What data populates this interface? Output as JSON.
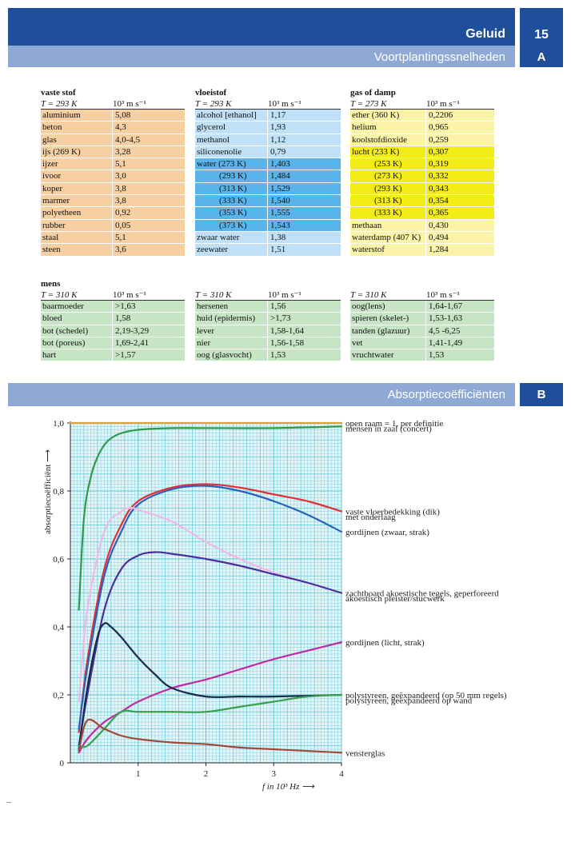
{
  "header": {
    "title": "Geluid",
    "chapter": "15",
    "subtitle": "Voortplantingssnelheden",
    "section": "A"
  },
  "tables": {
    "vaste_stof": {
      "title": "vaste stof",
      "temp": "T = 293 K",
      "unit": "10³ m s⁻¹",
      "rows": [
        [
          "aluminium",
          "5,08"
        ],
        [
          "beton",
          "4,3"
        ],
        [
          "glas",
          "4,0-4,5"
        ],
        [
          "ijs (269 K)",
          "3,28"
        ],
        [
          "ijzer",
          "5,1"
        ],
        [
          "ivoor",
          "3,0"
        ],
        [
          "koper",
          "3,8"
        ],
        [
          "marmer",
          "3,8"
        ],
        [
          "polyetheen",
          "0,92"
        ],
        [
          "rubber",
          "0,05"
        ],
        [
          "staal",
          "5,1"
        ],
        [
          "steen",
          "3,6"
        ]
      ]
    },
    "vloeistof": {
      "title": "vloeistof",
      "temp": "T = 293 K",
      "unit": "10³ m s⁻¹",
      "rows": [
        [
          "alcohol [ethanol]",
          "1,17"
        ],
        [
          "glycerol",
          "1,93"
        ],
        [
          "methanol",
          "1,12"
        ],
        [
          "siliconenolie",
          "0,79"
        ],
        [
          "water (273 K)",
          "1,403"
        ],
        [
          "(293 K)",
          "1,484"
        ],
        [
          "(313 K)",
          "1,529"
        ],
        [
          "(333 K)",
          "1,540"
        ],
        [
          "(353 K)",
          "1,555"
        ],
        [
          "(373 K)",
          "1,543"
        ],
        [
          "zwaar water",
          "1,38"
        ],
        [
          "zeewater",
          "1,51"
        ]
      ]
    },
    "gas": {
      "title": "gas of damp",
      "temp": "T = 273 K",
      "unit": "10³ m s⁻¹",
      "rows": [
        [
          "ether (360 K)",
          "0,2206"
        ],
        [
          "helium",
          "0,965"
        ],
        [
          "koolstofdioxide",
          "0,259"
        ],
        [
          "lucht   (233 K)",
          "0,307"
        ],
        [
          "(253 K)",
          "0,319"
        ],
        [
          "(273 K)",
          "0,332"
        ],
        [
          "(293 K)",
          "0,343"
        ],
        [
          "(313 K)",
          "0,354"
        ],
        [
          "(333 K)",
          "0,365"
        ],
        [
          "methaan",
          "0,430"
        ],
        [
          "waterdamp (407 K)",
          "0,494"
        ],
        [
          "waterstof",
          "1,284"
        ]
      ]
    },
    "mens": {
      "title": "mens",
      "temp": "T = 310 K",
      "unit": "10³ m s⁻¹",
      "rows": [
        [
          "baarmoeder",
          ">1,63"
        ],
        [
          "bloed",
          "1,58"
        ],
        [
          "bot (schedel)",
          "2,19-3,29"
        ],
        [
          "bot (poreus)",
          "1,69-2,41"
        ],
        [
          "hart",
          ">1,57"
        ]
      ]
    },
    "mens2": {
      "temp": "T = 310 K",
      "unit": "10³ m s⁻¹",
      "rows": [
        [
          "hersenen",
          "1,56"
        ],
        [
          "huid (epidermis)",
          ">1,73"
        ],
        [
          "lever",
          "1,58-1,64"
        ],
        [
          "nier",
          "1,56-1,58"
        ],
        [
          "oog (glasvocht)",
          "1,53"
        ]
      ]
    },
    "mens3": {
      "temp": "T = 310 K",
      "unit": "10³ m s⁻¹",
      "rows": [
        [
          "oog(lens)",
          "1,64-1,67"
        ],
        [
          "spieren (skelet-)",
          "1,53-1,63"
        ],
        [
          "tanden (glazuur)",
          "4,5 -6,25"
        ],
        [
          "vet",
          "1,41-1,49"
        ],
        [
          "vruchtwater",
          "1,53"
        ]
      ]
    }
  },
  "colors": {
    "solid": "#f6cfa3",
    "liquid_light": "#bfe0f6",
    "liquid_dark": "#58b4ea",
    "gas": "#fbf3a8",
    "gas_highlight": "#f4ec16",
    "human": "#c7e4c4",
    "band_dark": "#1f4f9a",
    "band_light": "#8fa9d6",
    "grid": "#62c3d4",
    "grid_bg": "#e2f5f8"
  },
  "section_b": {
    "title": "Absorptiecoëfficiënten",
    "letter": "B"
  },
  "chart_data": {
    "type": "line",
    "xlabel": "f  in 10³ Hz",
    "ylabel": "absorptiecoëfficiënt",
    "xlim": [
      0,
      4
    ],
    "ylim": [
      0,
      1.0
    ],
    "x_ticks": [
      "1",
      "2",
      "3",
      "4"
    ],
    "y_ticks": [
      "0",
      "0,2",
      "0,4",
      "0,6",
      "0,8",
      "1,0"
    ],
    "grid": true,
    "series": [
      {
        "name": "open raam = 1, per definitie",
        "color": "#d9a040",
        "x": [
          0,
          4
        ],
        "y": [
          1.0,
          1.0
        ]
      },
      {
        "name": "mensen in zaal (concert)",
        "color": "#2f9a4a",
        "x": [
          0.125,
          0.2,
          0.3,
          0.4,
          0.5,
          0.6,
          0.75,
          1.0,
          1.5,
          2.0,
          3.0,
          4.0
        ],
        "y": [
          0.45,
          0.72,
          0.84,
          0.9,
          0.935,
          0.955,
          0.97,
          0.98,
          0.985,
          0.985,
          0.985,
          0.99
        ]
      },
      {
        "name": "vaste vloerbedekking (dik) met onderlaag",
        "color": "#e0303a",
        "x": [
          0.125,
          0.25,
          0.5,
          0.75,
          1.0,
          1.5,
          2.0,
          2.5,
          3.0,
          3.5,
          4.0
        ],
        "y": [
          0.09,
          0.3,
          0.57,
          0.7,
          0.77,
          0.81,
          0.82,
          0.81,
          0.79,
          0.77,
          0.74
        ]
      },
      {
        "name": "gordijnen (zwaar, strak)",
        "color": "#2a62b8",
        "x": [
          0.125,
          0.25,
          0.5,
          0.75,
          1.0,
          1.5,
          2.0,
          2.5,
          3.0,
          3.5,
          4.0
        ],
        "y": [
          0.1,
          0.28,
          0.55,
          0.68,
          0.76,
          0.805,
          0.815,
          0.8,
          0.77,
          0.73,
          0.68
        ]
      },
      {
        "name": "zachtboard akoestische tegels, geperforeerd",
        "color": "#f0b8e8",
        "x": [
          0.125,
          0.25,
          0.5,
          0.75,
          0.9,
          1.0,
          1.5,
          2.0,
          2.5,
          3.0,
          3.5,
          4.0
        ],
        "y": [
          0.18,
          0.45,
          0.68,
          0.74,
          0.75,
          0.745,
          0.71,
          0.65,
          0.6,
          0.56,
          0.53,
          0.5
        ]
      },
      {
        "name": "akoestisch pleister/stucwerk",
        "color": "#4a2e9a",
        "x": [
          0.125,
          0.25,
          0.5,
          0.75,
          1.0,
          1.25,
          1.5,
          2.0,
          2.5,
          3.0,
          3.5,
          4.0
        ],
        "y": [
          0.05,
          0.2,
          0.45,
          0.57,
          0.61,
          0.62,
          0.615,
          0.6,
          0.58,
          0.555,
          0.53,
          0.5
        ]
      },
      {
        "name": "gordijnen (licht, strak)",
        "color": "#c02aa0",
        "x": [
          0.125,
          0.25,
          0.5,
          0.75,
          1.0,
          1.5,
          2.0,
          2.5,
          3.0,
          3.5,
          4.0
        ],
        "y": [
          0.03,
          0.07,
          0.12,
          0.15,
          0.18,
          0.22,
          0.245,
          0.275,
          0.305,
          0.33,
          0.355
        ]
      },
      {
        "name": "polystyreen, geëxpandeerd (op 50 mm regels)",
        "color": "#1a2a4a",
        "x": [
          0.125,
          0.25,
          0.4,
          0.5,
          0.6,
          0.75,
          1.0,
          1.25,
          1.5,
          2.0,
          2.5,
          3.0,
          4.0
        ],
        "y": [
          0.04,
          0.22,
          0.37,
          0.41,
          0.4,
          0.37,
          0.31,
          0.26,
          0.22,
          0.195,
          0.195,
          0.195,
          0.2
        ]
      },
      {
        "name": "polystyreen, geëxpandeerd  op wand",
        "color": "#3aa050",
        "x": [
          0.125,
          0.25,
          0.5,
          0.75,
          1.0,
          1.5,
          2.0,
          2.5,
          3.0,
          3.5,
          4.0
        ],
        "y": [
          0.05,
          0.05,
          0.1,
          0.15,
          0.15,
          0.15,
          0.15,
          0.165,
          0.18,
          0.195,
          0.2
        ]
      },
      {
        "name": "vensterglas",
        "color": "#a04a3a",
        "x": [
          0.125,
          0.25,
          0.5,
          0.75,
          1.0,
          1.5,
          2.0,
          2.5,
          3.0,
          3.5,
          4.0
        ],
        "y": [
          0.035,
          0.125,
          0.1,
          0.08,
          0.07,
          0.06,
          0.055,
          0.045,
          0.04,
          0.035,
          0.03
        ]
      }
    ],
    "annotations": [
      {
        "text": "open raam = 1, per definitie",
        "y": 1.0
      },
      {
        "text": "mensen in zaal (concert)",
        "y": 0.985
      },
      {
        "text": "vaste vloerbedekking (dik)",
        "y": 0.74
      },
      {
        "text": "met onderlaag",
        "y": 0.725
      },
      {
        "text": "gordijnen (zwaar, strak)",
        "y": 0.68
      },
      {
        "text": "zachtboard akoestische tegels, geperforeerd",
        "y": 0.5
      },
      {
        "text": "akoestisch pleister/stucwerk",
        "y": 0.485
      },
      {
        "text": "gordijnen (licht, strak)",
        "y": 0.355
      },
      {
        "text": "polystyreen, geëxpandeerd (op 50 mm regels)",
        "y": 0.2
      },
      {
        "text": "polystyreen, geëxpandeerd  op wand",
        "y": 0.185
      },
      {
        "text": "vensterglas",
        "y": 0.03
      }
    ]
  }
}
